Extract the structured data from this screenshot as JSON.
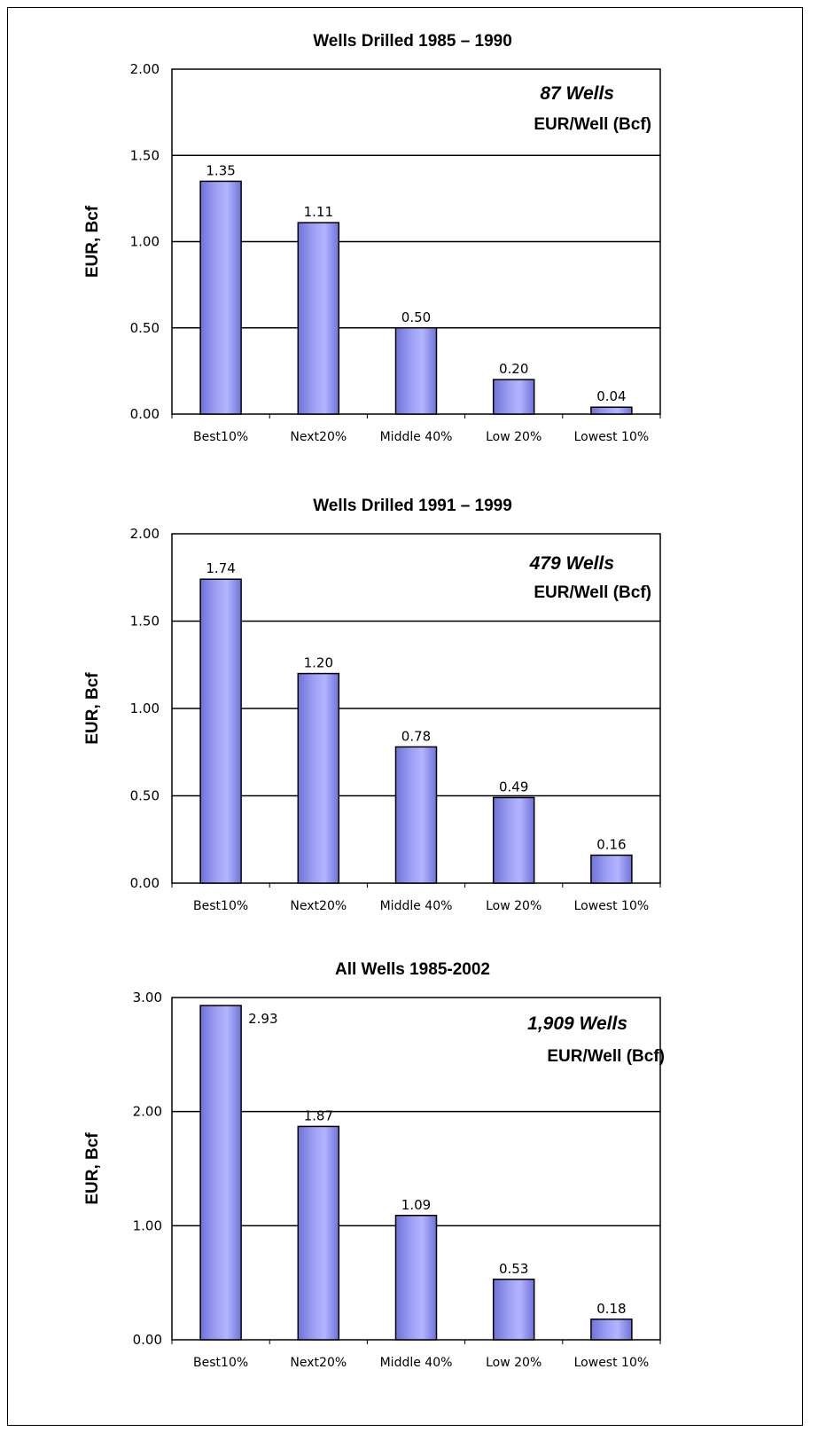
{
  "chart_data": [
    {
      "type": "bar",
      "title": "Wells Drilled 1985 – 1990",
      "ylabel": "EUR, Bcf",
      "xlabel": "",
      "categories": [
        "Best10%",
        "Next20%",
        "Middle 40%",
        "Low 20%",
        "Lowest 10%"
      ],
      "values": [
        1.35,
        1.11,
        0.5,
        0.2,
        0.04
      ],
      "value_labels": [
        "1.35",
        "1.11",
        "0.50",
        "0.20",
        "0.04"
      ],
      "ylim": [
        0,
        2.0
      ],
      "yticks": [
        "0.00",
        "0.50",
        "1.00",
        "1.50",
        "2.00"
      ],
      "annotation_count": "87 Wells",
      "annotation_unit": "EUR/Well (Bcf)",
      "grid": true,
      "bar_color": "#9a9cf2"
    },
    {
      "type": "bar",
      "title": "Wells Drilled 1991 – 1999",
      "ylabel": "EUR, Bcf",
      "xlabel": "",
      "categories": [
        "Best10%",
        "Next20%",
        "Middle 40%",
        "Low 20%",
        "Lowest 10%"
      ],
      "values": [
        1.74,
        1.2,
        0.78,
        0.49,
        0.16
      ],
      "value_labels": [
        "1.74",
        "1.20",
        "0.78",
        "0.49",
        "0.16"
      ],
      "ylim": [
        0,
        2.0
      ],
      "yticks": [
        "0.00",
        "0.50",
        "1.00",
        "1.50",
        "2.00"
      ],
      "annotation_count": "479 Wells",
      "annotation_unit": "EUR/Well (Bcf)",
      "grid": true,
      "bar_color": "#9a9cf2"
    },
    {
      "type": "bar",
      "title": "All Wells 1985-2002",
      "ylabel": "EUR, Bcf",
      "xlabel": "",
      "categories": [
        "Best10%",
        "Next20%",
        "Middle 40%",
        "Low 20%",
        "Lowest 10%"
      ],
      "values": [
        2.93,
        1.87,
        1.09,
        0.53,
        0.18
      ],
      "value_labels": [
        "2.93",
        "1.87",
        "1.09",
        "0.53",
        "0.18"
      ],
      "ylim": [
        0,
        3.0
      ],
      "yticks": [
        "0.00",
        "1.00",
        "2.00",
        "3.00"
      ],
      "annotation_count": "1,909 Wells",
      "annotation_unit": "EUR/Well (Bcf)",
      "grid": true,
      "bar_color": "#9a9cf2"
    }
  ]
}
